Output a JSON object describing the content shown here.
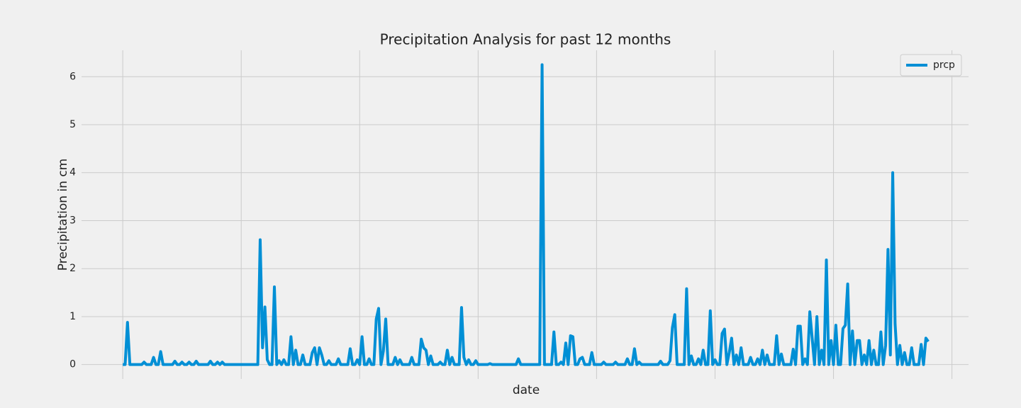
{
  "chart_data": {
    "type": "line",
    "title": "Precipitation Analysis for past 12 months",
    "xlabel": "date",
    "ylabel": "Precipitation in cm",
    "xlim": [
      -17.4,
      357
    ],
    "xticks": [
      0,
      50,
      100,
      150,
      200,
      250,
      300,
      350
    ],
    "ylim": [
      -0.3,
      6.55
    ],
    "yticks": [
      0,
      1,
      2,
      3,
      4,
      5,
      6
    ],
    "grid": true,
    "legend": "upper right",
    "series": [
      {
        "name": "prcp",
        "color": "#008fd5",
        "values": [
          0,
          0,
          0.88,
          0,
          0,
          0,
          0,
          0,
          0,
          0.05,
          0,
          0,
          0,
          0.15,
          0,
          0,
          0.27,
          0,
          0,
          0,
          0,
          0,
          0.07,
          0,
          0,
          0.05,
          0,
          0,
          0.05,
          0,
          0,
          0.07,
          0,
          0,
          0,
          0,
          0,
          0.07,
          0,
          0,
          0.05,
          0,
          0.05,
          0,
          0,
          0,
          0,
          0,
          0,
          0,
          0,
          0,
          0,
          0,
          0,
          0,
          0,
          0,
          2.6,
          0.35,
          1.2,
          0.1,
          0,
          0,
          1.62,
          0,
          0.08,
          0,
          0.1,
          0,
          0,
          0.58,
          0,
          0.3,
          0,
          0,
          0.2,
          0,
          0,
          0,
          0.25,
          0.35,
          0,
          0.35,
          0.2,
          0,
          0,
          0.08,
          0,
          0,
          0,
          0.12,
          0,
          0,
          0,
          0,
          0.33,
          0,
          0,
          0.1,
          0,
          0.58,
          0,
          0,
          0.12,
          0,
          0,
          0.95,
          1.17,
          0,
          0.28,
          0.95,
          0,
          0,
          0,
          0.15,
          0,
          0.1,
          0,
          0,
          0,
          0,
          0.15,
          0,
          0,
          0,
          0.53,
          0.35,
          0.3,
          0,
          0.18,
          0,
          0,
          0,
          0.05,
          0,
          0,
          0.3,
          0,
          0.15,
          0,
          0,
          0,
          1.19,
          0.15,
          0,
          0.1,
          0,
          0,
          0.08,
          0,
          0,
          0,
          0,
          0,
          0.02,
          0,
          0,
          0,
          0,
          0,
          0,
          0,
          0,
          0,
          0,
          0,
          0.12,
          0,
          0,
          0,
          0,
          0,
          0,
          0,
          0,
          0,
          6.25,
          0,
          0,
          0,
          0,
          0.68,
          0,
          0,
          0.05,
          0,
          0.45,
          0,
          0.6,
          0.58,
          0,
          0,
          0.12,
          0.15,
          0,
          0,
          0,
          0.25,
          0,
          0,
          0,
          0,
          0.05,
          0,
          0,
          0,
          0,
          0.05,
          0,
          0,
          0,
          0,
          0.12,
          0,
          0,
          0.33,
          0,
          0.05,
          0,
          0,
          0,
          0,
          0,
          0,
          0,
          0,
          0.07,
          0,
          0,
          0,
          0.08,
          0.77,
          1.04,
          0,
          0,
          0,
          0,
          1.58,
          0,
          0.18,
          0,
          0,
          0.12,
          0,
          0.3,
          0,
          0,
          1.12,
          0,
          0.1,
          0,
          0,
          0.65,
          0.74,
          0,
          0.25,
          0.55,
          0,
          0.2,
          0,
          0.35,
          0,
          0,
          0,
          0.15,
          0,
          0,
          0.12,
          0,
          0.3,
          0,
          0.2,
          0,
          0,
          0,
          0.6,
          0,
          0.22,
          0,
          0,
          0,
          0,
          0.32,
          0,
          0.8,
          0.8,
          0,
          0.12,
          0,
          1.1,
          0.55,
          0,
          1.0,
          0,
          0.3,
          0,
          2.18,
          0,
          0.5,
          0,
          0.82,
          0,
          0,
          0.75,
          0.82,
          1.68,
          0,
          0.7,
          0,
          0.5,
          0.5,
          0,
          0.2,
          0,
          0.5,
          0,
          0.3,
          0,
          0,
          0.68,
          0,
          0.4,
          2.4,
          0.2,
          4.0,
          0.85,
          0,
          0.4,
          0,
          0.25,
          0,
          0,
          0.35,
          0,
          0,
          0,
          0.42,
          0,
          0.55,
          0.48
        ]
      }
    ]
  }
}
